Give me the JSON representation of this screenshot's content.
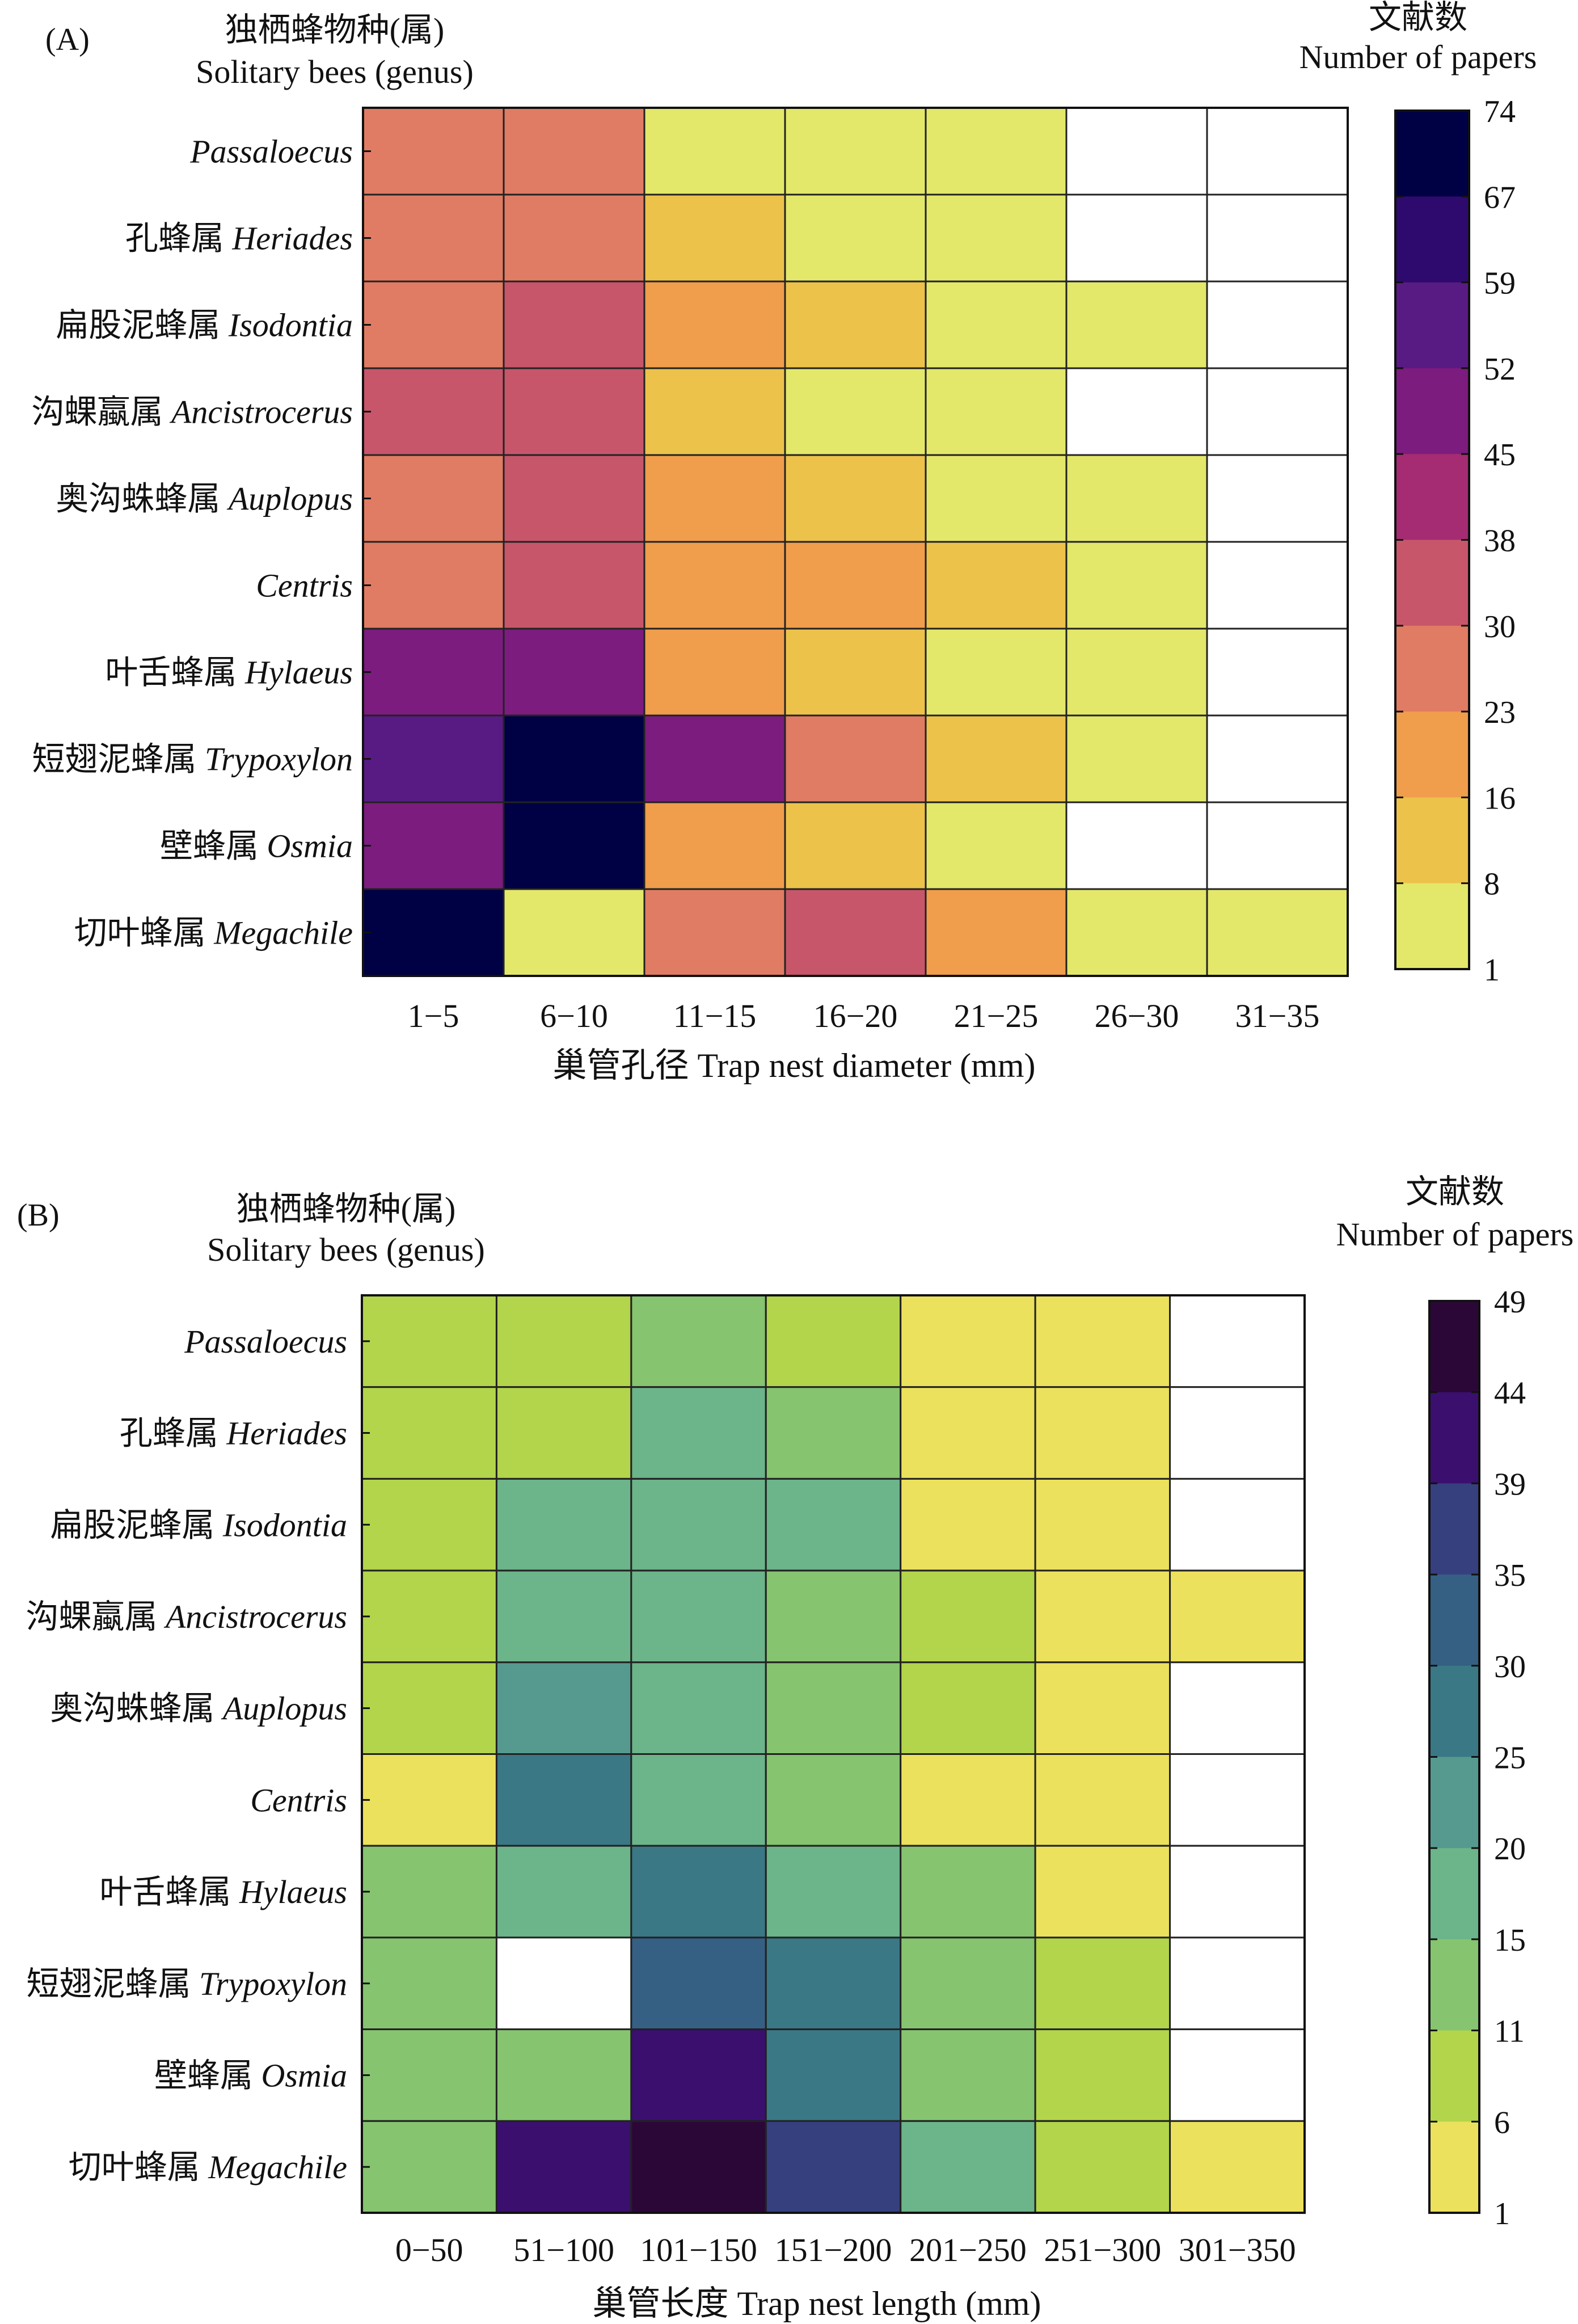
{
  "chart_data": [
    {
      "type": "heatmap",
      "panel_label": "(A)",
      "y_title_cn": "独栖蜂物种(属)",
      "y_title_en": "Solitary bees (genus)",
      "legend_title_cn": "文献数",
      "legend_title_en": "Number of papers",
      "xlabel": "巢管孔径 Trap nest diameter (mm)",
      "x_categories": [
        "1−5",
        "6−10",
        "11−15",
        "16−20",
        "21−25",
        "26−30",
        "31−35"
      ],
      "rows": [
        {
          "cn": "",
          "en": "Passaloecus"
        },
        {
          "cn": "孔蜂属 ",
          "en": "Heriades"
        },
        {
          "cn": "扁股泥蜂属 ",
          "en": "Isodontia"
        },
        {
          "cn": "沟蜾蠃属 ",
          "en": "Ancistrocerus"
        },
        {
          "cn": "奥沟蛛蜂属 ",
          "en": "Auplopus"
        },
        {
          "cn": "",
          "en": "Centris"
        },
        {
          "cn": "叶舌蜂属 ",
          "en": "Hylaeus"
        },
        {
          "cn": "短翅泥蜂属 ",
          "en": "Trypoxylon"
        },
        {
          "cn": "壁蜂属 ",
          "en": "Osmia"
        },
        {
          "cn": "切叶蜂属 ",
          "en": "Megachile"
        }
      ],
      "values": [
        [
          27,
          27,
          5,
          5,
          5,
          0,
          0
        ],
        [
          27,
          27,
          12,
          5,
          5,
          0,
          0
        ],
        [
          27,
          34,
          20,
          12,
          5,
          5,
          0
        ],
        [
          34,
          34,
          12,
          5,
          5,
          0,
          0
        ],
        [
          27,
          34,
          20,
          12,
          5,
          5,
          0
        ],
        [
          27,
          34,
          20,
          20,
          12,
          5,
          0
        ],
        [
          48,
          48,
          20,
          12,
          5,
          5,
          0
        ],
        [
          55,
          74,
          48,
          27,
          12,
          5,
          0
        ],
        [
          48,
          74,
          20,
          12,
          5,
          0,
          0
        ],
        [
          74,
          5,
          27,
          34,
          20,
          5,
          5
        ]
      ],
      "colorbar_ticks": [
        "74",
        "67",
        "59",
        "52",
        "45",
        "38",
        "30",
        "23",
        "16",
        "8",
        "1"
      ],
      "colorbar_colors": [
        "#000044",
        "#2e0a6e",
        "#581b83",
        "#7c1c7e",
        "#a52c72",
        "#c7566a",
        "#e07c63",
        "#f09d4c",
        "#ecc24a",
        "#e3e86a"
      ],
      "zero_color": "#ffffff"
    },
    {
      "type": "heatmap",
      "panel_label": "(B)",
      "y_title_cn": "独栖蜂物种(属)",
      "y_title_en": "Solitary bees (genus)",
      "legend_title_cn": "文献数",
      "legend_title_en": "Number of papers",
      "xlabel": "巢管长度 Trap nest length (mm)",
      "x_categories": [
        "0−50",
        "51−100",
        "101−150",
        "151−200",
        "201−250",
        "251−300",
        "301−350"
      ],
      "rows": [
        {
          "cn": "",
          "en": "Passaloecus"
        },
        {
          "cn": "孔蜂属 ",
          "en": "Heriades"
        },
        {
          "cn": "扁股泥蜂属 ",
          "en": "Isodontia"
        },
        {
          "cn": "沟蜾蠃属 ",
          "en": "Ancistrocerus"
        },
        {
          "cn": "奥沟蛛蜂属 ",
          "en": "Auplopus"
        },
        {
          "cn": "",
          "en": "Centris"
        },
        {
          "cn": "叶舌蜂属 ",
          "en": "Hylaeus"
        },
        {
          "cn": "短翅泥蜂属 ",
          "en": "Trypoxylon"
        },
        {
          "cn": "壁蜂属 ",
          "en": "Osmia"
        },
        {
          "cn": "切叶蜂属 ",
          "en": "Megachile"
        }
      ],
      "values": [
        [
          8,
          8,
          13,
          8,
          3,
          3,
          0
        ],
        [
          8,
          8,
          17,
          13,
          3,
          3,
          0
        ],
        [
          8,
          17,
          17,
          17,
          3,
          3,
          0
        ],
        [
          8,
          17,
          17,
          13,
          8,
          3,
          3
        ],
        [
          8,
          22,
          17,
          13,
          8,
          3,
          0
        ],
        [
          3,
          27,
          17,
          13,
          3,
          3,
          0
        ],
        [
          13,
          17,
          27,
          17,
          13,
          3,
          0
        ],
        [
          13,
          0,
          32,
          27,
          13,
          8,
          0
        ],
        [
          13,
          13,
          42,
          27,
          13,
          8,
          0
        ],
        [
          13,
          42,
          47,
          37,
          17,
          8,
          3
        ]
      ],
      "colorbar_ticks": [
        "49",
        "44",
        "39",
        "35",
        "30",
        "25",
        "20",
        "15",
        "11",
        "6",
        "1"
      ],
      "colorbar_colors": [
        "#2b0738",
        "#3a0f6e",
        "#36407e",
        "#365f84",
        "#3a7886",
        "#569a8f",
        "#6cb48a",
        "#86c470",
        "#b2d54b",
        "#ece15c"
      ],
      "zero_color": "#ffffff"
    }
  ]
}
